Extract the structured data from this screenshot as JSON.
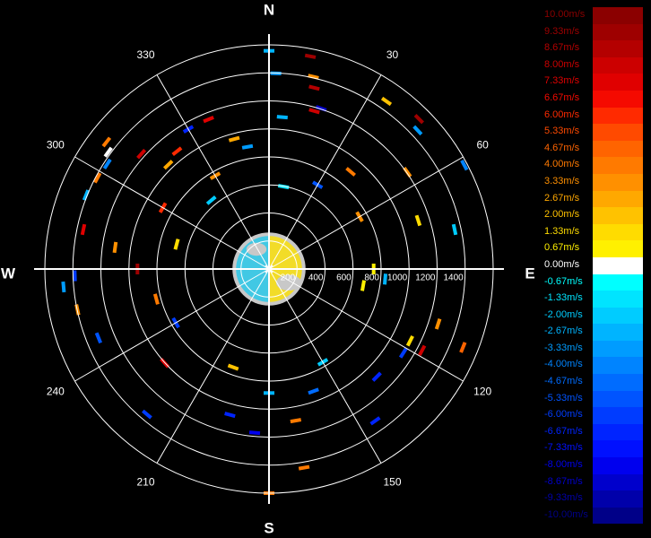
{
  "chart_data": {
    "type": "polar-radar-velocity",
    "directions": {
      "north": "N",
      "east": "E",
      "south": "S",
      "west": "W"
    },
    "azimuth_labels": [
      "30",
      "60",
      "120",
      "150",
      "210",
      "240",
      "300",
      "330"
    ],
    "range_labels": [
      "200",
      "400",
      "600",
      "800",
      "1000",
      "1200",
      "1400"
    ],
    "rmax": 1500,
    "legend": [
      {
        "label": "10.00m/s",
        "color": "#8b0000"
      },
      {
        "label": "9.33m/s",
        "color": "#9e0000"
      },
      {
        "label": "8.67m/s",
        "color": "#b40000"
      },
      {
        "label": "8.00m/s",
        "color": "#cc0000"
      },
      {
        "label": "7.33m/s",
        "color": "#e00000"
      },
      {
        "label": "6.67m/s",
        "color": "#f50a00"
      },
      {
        "label": "6.00m/s",
        "color": "#ff2a00"
      },
      {
        "label": "5.33m/s",
        "color": "#ff4a00"
      },
      {
        "label": "4.67m/s",
        "color": "#ff6400"
      },
      {
        "label": "4.00m/s",
        "color": "#ff7a00"
      },
      {
        "label": "3.33m/s",
        "color": "#ff9000"
      },
      {
        "label": "2.67m/s",
        "color": "#ffa800"
      },
      {
        "label": "2.00m/s",
        "color": "#ffc200"
      },
      {
        "label": "1.33m/s",
        "color": "#ffdc00"
      },
      {
        "label": "0.67m/s",
        "color": "#fff000"
      },
      {
        "label": "0.00m/s",
        "color": "#ffffff"
      },
      {
        "label": "-0.67m/s",
        "color": "#00ffff"
      },
      {
        "label": "-1.33m/s",
        "color": "#00e4ff"
      },
      {
        "label": "-2.00m/s",
        "color": "#00ccff"
      },
      {
        "label": "-2.67m/s",
        "color": "#00b4ff"
      },
      {
        "label": "-3.33m/s",
        "color": "#009cff"
      },
      {
        "label": "-4.00m/s",
        "color": "#0084ff"
      },
      {
        "label": "-4.67m/s",
        "color": "#006cff"
      },
      {
        "label": "-5.33m/s",
        "color": "#0054ff"
      },
      {
        "label": "-6.00m/s",
        "color": "#003cff"
      },
      {
        "label": "-6.67m/s",
        "color": "#0024ff"
      },
      {
        "label": "-7.33m/s",
        "color": "#0010ff"
      },
      {
        "label": "-8.00m/s",
        "color": "#0000ee"
      },
      {
        "label": "-8.67m/s",
        "color": "#0000cc"
      },
      {
        "label": "-9.33m/s",
        "color": "#0000aa"
      },
      {
        "label": "-10.00m/s",
        "color": "#000088"
      }
    ],
    "scene": {
      "blob_radius": 240,
      "positive_color": "#f2dc28",
      "negative_color": "#41c8e4",
      "zero_color": "#c8c8c8"
    },
    "echoes": [
      {
        "az": 2,
        "r": 1310,
        "v": -3.3
      },
      {
        "az": 11,
        "r": 1450,
        "v": 9.3
      },
      {
        "az": 13,
        "r": 1320,
        "v": 3.3
      },
      {
        "az": 14,
        "r": 1250,
        "v": 8.6
      },
      {
        "az": 16,
        "r": 1100,
        "v": 8.0
      },
      {
        "az": 18,
        "r": 1130,
        "v": -8.6
      },
      {
        "az": 5,
        "r": 1020,
        "v": -2.5
      },
      {
        "az": 35,
        "r": 1370,
        "v": 2.2
      },
      {
        "az": 45,
        "r": 1420,
        "v": 9.0
      },
      {
        "az": 47,
        "r": 1360,
        "v": -3.6
      },
      {
        "az": 55,
        "r": 1130,
        "v": 3.0
      },
      {
        "az": 62,
        "r": 1480,
        "v": -4.2
      },
      {
        "az": 78,
        "r": 1270,
        "v": -2.0
      },
      {
        "az": 72,
        "r": 1050,
        "v": 1.4
      },
      {
        "az": 112,
        "r": 1400,
        "v": 4.6
      },
      {
        "az": 108,
        "r": 1190,
        "v": 3.5
      },
      {
        "az": 118,
        "r": 1160,
        "v": 8.2
      },
      {
        "az": 122,
        "r": 1060,
        "v": -6.0
      },
      {
        "az": 117,
        "r": 1060,
        "v": 1.4
      },
      {
        "az": 135,
        "r": 1020,
        "v": -6.5
      },
      {
        "az": 145,
        "r": 1240,
        "v": -7.0
      },
      {
        "az": 170,
        "r": 1350,
        "v": 4.0
      },
      {
        "az": 170,
        "r": 1030,
        "v": 4.0
      },
      {
        "az": 160,
        "r": 870,
        "v": -4.8
      },
      {
        "az": 185,
        "r": 1100,
        "v": -7.8
      },
      {
        "az": 195,
        "r": 1010,
        "v": -6.4
      },
      {
        "az": 220,
        "r": 1270,
        "v": -6.0
      },
      {
        "az": 228,
        "r": 940,
        "v": 7.0
      },
      {
        "az": 248,
        "r": 1230,
        "v": -5.5
      },
      {
        "az": 258,
        "r": 1310,
        "v": 3.3
      },
      {
        "az": 265,
        "r": 1380,
        "v": -3.5
      },
      {
        "az": 268,
        "r": 1300,
        "v": -6.3
      },
      {
        "az": 282,
        "r": 1270,
        "v": 7.2
      },
      {
        "az": 278,
        "r": 1040,
        "v": 3.0
      },
      {
        "az": 292,
        "r": 1320,
        "v": -2.8
      },
      {
        "az": 298,
        "r": 1300,
        "v": 4.0
      },
      {
        "az": 303,
        "r": 1290,
        "v": -3.8
      },
      {
        "az": 306,
        "r": 1330,
        "v": 0.0
      },
      {
        "az": 308,
        "r": 1380,
        "v": 4.2
      },
      {
        "az": 312,
        "r": 1150,
        "v": 7.7
      },
      {
        "az": 316,
        "r": 970,
        "v": 2.4
      },
      {
        "az": 322,
        "r": 1000,
        "v": 5.7
      },
      {
        "az": 330,
        "r": 1080,
        "v": -6.8
      },
      {
        "az": 338,
        "r": 1080,
        "v": 7.2
      },
      {
        "az": 345,
        "r": 900,
        "v": 2.6
      },
      {
        "az": 350,
        "r": 830,
        "v": -3.4
      },
      {
        "az": 330,
        "r": 720,
        "v": 3.0
      },
      {
        "az": 300,
        "r": 820,
        "v": 6.2
      },
      {
        "az": 40,
        "r": 850,
        "v": 4.0
      },
      {
        "az": 30,
        "r": 650,
        "v": -5.6
      },
      {
        "az": 60,
        "r": 700,
        "v": 3.5
      },
      {
        "az": 95,
        "r": 780,
        "v": -3.0
      },
      {
        "az": 100,
        "r": 640,
        "v": 1.0
      },
      {
        "az": 150,
        "r": 720,
        "v": -2.0
      },
      {
        "az": 200,
        "r": 700,
        "v": 1.7
      },
      {
        "az": 240,
        "r": 720,
        "v": -6.2
      },
      {
        "az": 255,
        "r": 780,
        "v": 4.0
      },
      {
        "az": 285,
        "r": 640,
        "v": 1.3
      },
      {
        "az": 320,
        "r": 600,
        "v": -2.2
      },
      {
        "az": 10,
        "r": 560,
        "v": -1.5
      },
      {
        "az": 90,
        "r": 700,
        "v": 0.7
      },
      {
        "az": 270,
        "r": 880,
        "v": 9.0
      },
      {
        "az": 180,
        "r": 1500,
        "v": 3.8
      },
      {
        "az": 180,
        "r": 830,
        "v": -3.0
      },
      {
        "az": 0,
        "r": 1460,
        "v": -2.6
      }
    ]
  }
}
